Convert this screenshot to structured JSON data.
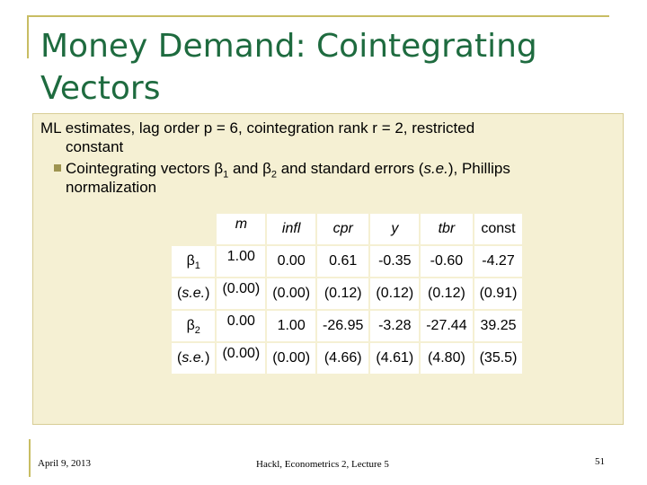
{
  "slide": {
    "title": "Money Demand: Cointegrating Vectors",
    "intro_line1": "ML estimates, lag order p = 6, cointegration rank r = 2, restricted",
    "intro_line2": "constant",
    "bullet_pre": "Cointegrating vectors β",
    "bullet_sub1": "1",
    "bullet_mid": " and β",
    "bullet_sub2": "2",
    "bullet_post1": " and standard errors (",
    "bullet_italic": "s.e.",
    "bullet_post2": "), Phillips",
    "bullet_line2": "normalization"
  },
  "table": {
    "headers": [
      "m",
      "infl",
      "cpr",
      "y",
      "tbr",
      "const"
    ],
    "beta1_label": "β",
    "beta1_sub": "1",
    "beta2_label": "β",
    "beta2_sub": "2",
    "se_label": "s.e.",
    "rows": [
      [
        "1.00",
        "0.00",
        "0.61",
        "-0.35",
        "-0.60",
        "-4.27"
      ],
      [
        "(0.00)",
        "(0.00)",
        "(0.12)",
        "(0.12)",
        "(0.12)",
        "(0.91)"
      ],
      [
        "0.00",
        "1.00",
        "-26.95",
        "-3.28",
        "-27.44",
        "39.25"
      ],
      [
        "(0.00)",
        "(0.00)",
        "(4.66)",
        "(4.61)",
        "(4.80)",
        "(35.5)"
      ]
    ]
  },
  "footer": {
    "date": "April 9, 2013",
    "center": "Hackl, Econometrics 2, Lecture 5",
    "page": "51"
  },
  "colors": {
    "title": "#1e6b3f",
    "content_bg": "#f5f0d3",
    "rule": "#c8bd63"
  }
}
